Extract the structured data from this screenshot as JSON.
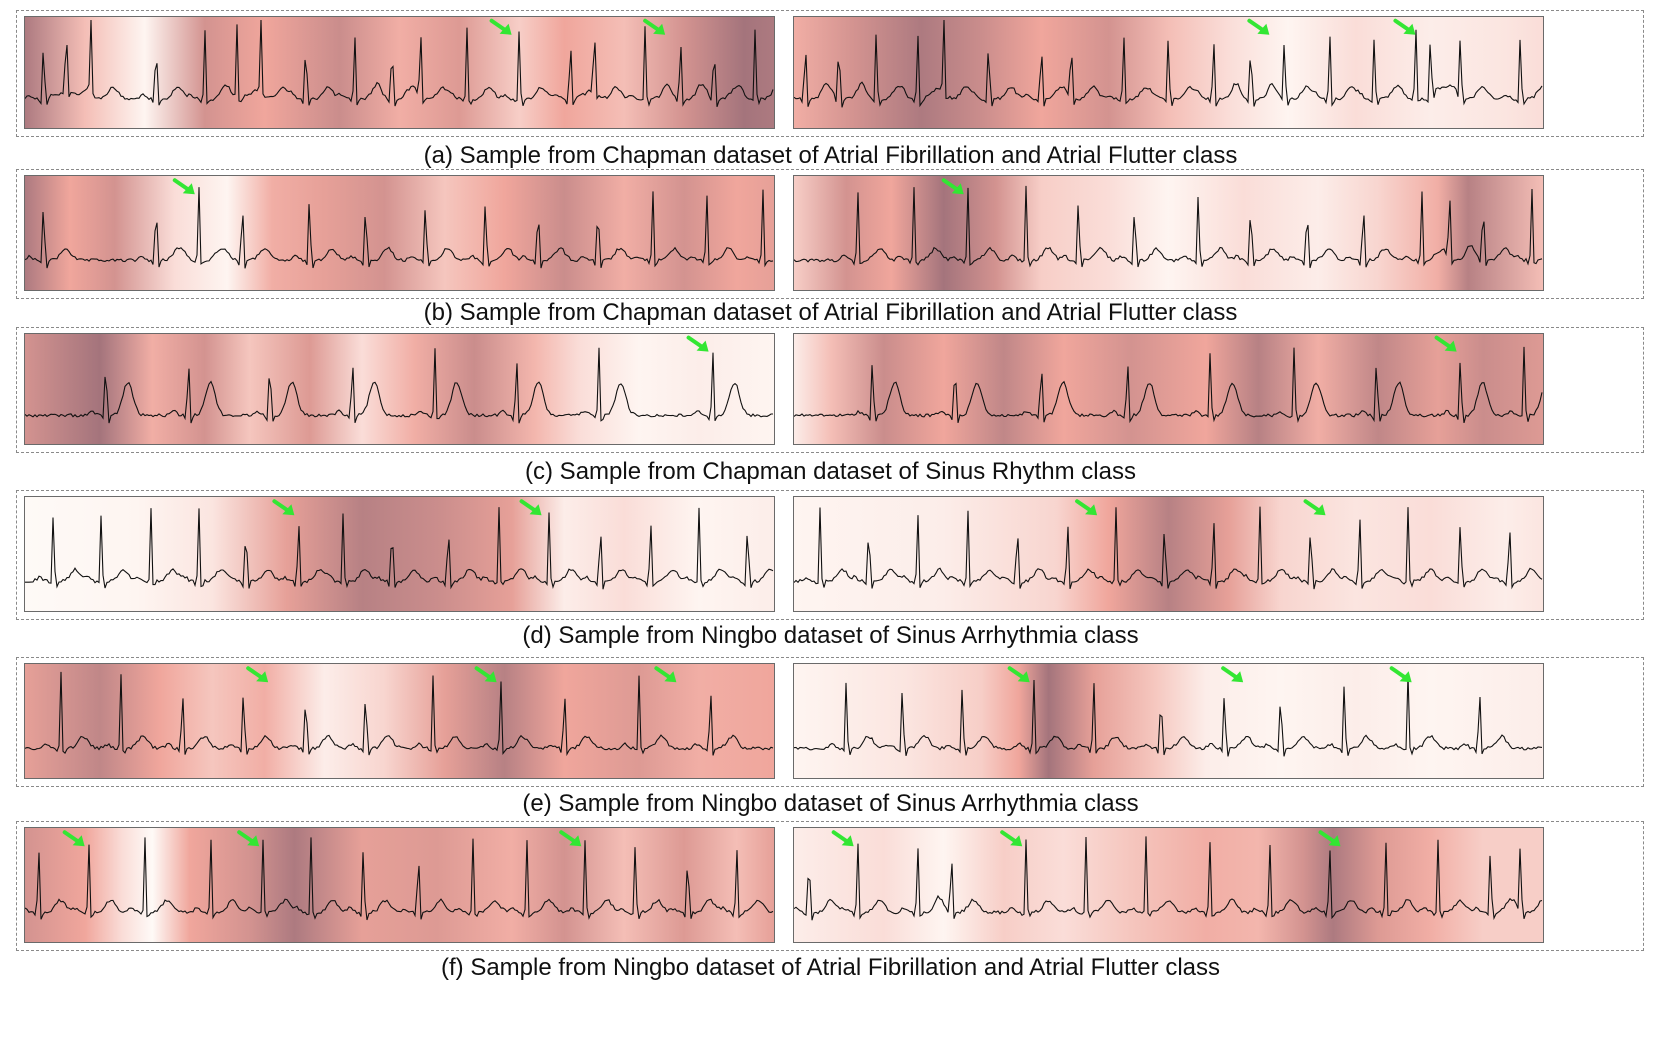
{
  "colors": {
    "arrow": "#33e633",
    "trace": "#111111",
    "heat_low": "#fffdfa",
    "heat_mid": "#f0a69c",
    "heat_high": "#9a6e78"
  },
  "rows": [
    {
      "caption": "(a) Sample from Chapman dataset of Atrial Fibrillation and Atrial Flutter class",
      "panels": [
        {
          "beats": [
            0.025,
            0.055,
            0.088,
            0.175,
            0.24,
            0.283,
            0.315,
            0.375,
            0.44,
            0.49,
            0.528,
            0.59,
            0.66,
            0.728,
            0.76,
            0.828,
            0.875,
            0.92,
            0.975
          ],
          "arrows": [
            0.655,
            0.86
          ],
          "heat": [
            [
              0,
              0.9
            ],
            [
              0.08,
              0.4
            ],
            [
              0.16,
              0.05
            ],
            [
              0.24,
              0.7
            ],
            [
              0.32,
              0.55
            ],
            [
              0.42,
              0.75
            ],
            [
              0.5,
              0.5
            ],
            [
              0.58,
              0.65
            ],
            [
              0.66,
              0.3
            ],
            [
              0.72,
              0.55
            ],
            [
              0.8,
              0.4
            ],
            [
              0.88,
              0.7
            ],
            [
              0.96,
              0.95
            ],
            [
              1,
              0.9
            ]
          ]
        },
        {
          "beats": [
            0.015,
            0.06,
            0.11,
            0.165,
            0.2,
            0.26,
            0.33,
            0.37,
            0.44,
            0.5,
            0.56,
            0.61,
            0.655,
            0.715,
            0.775,
            0.83,
            0.85,
            0.89,
            0.97
          ],
          "arrows": [
            0.64,
            0.835
          ],
          "heat": [
            [
              0,
              0.5
            ],
            [
              0.08,
              0.7
            ],
            [
              0.17,
              0.9
            ],
            [
              0.25,
              0.75
            ],
            [
              0.33,
              0.55
            ],
            [
              0.42,
              0.7
            ],
            [
              0.5,
              0.4
            ],
            [
              0.58,
              0.2
            ],
            [
              0.66,
              0.05
            ],
            [
              0.75,
              0.2
            ],
            [
              0.85,
              0.1
            ],
            [
              0.95,
              0.15
            ],
            [
              1,
              0.2
            ]
          ]
        }
      ]
    },
    {
      "caption": "(b) Sample from Chapman dataset of Atrial Fibrillation and Atrial Flutter class",
      "panels": [
        {
          "beats": [
            0.025,
            0.175,
            0.232,
            0.29,
            0.38,
            0.455,
            0.535,
            0.615,
            0.685,
            0.765,
            0.838,
            0.91,
            0.985
          ],
          "arrows": [
            0.232
          ],
          "heat": [
            [
              0,
              0.9
            ],
            [
              0.06,
              0.55
            ],
            [
              0.12,
              0.7
            ],
            [
              0.2,
              0.2
            ],
            [
              0.27,
              0.05
            ],
            [
              0.33,
              0.5
            ],
            [
              0.4,
              0.6
            ],
            [
              0.48,
              0.7
            ],
            [
              0.56,
              0.35
            ],
            [
              0.64,
              0.55
            ],
            [
              0.72,
              0.75
            ],
            [
              0.8,
              0.5
            ],
            [
              0.88,
              0.7
            ],
            [
              0.95,
              0.55
            ],
            [
              1,
              0.6
            ]
          ]
        },
        {
          "beats": [
            0.085,
            0.16,
            0.232,
            0.31,
            0.38,
            0.455,
            0.54,
            0.61,
            0.685,
            0.76,
            0.838,
            0.875,
            0.92,
            0.985
          ],
          "arrows": [
            0.232
          ],
          "heat": [
            [
              0,
              0.3
            ],
            [
              0.07,
              0.7
            ],
            [
              0.13,
              0.55
            ],
            [
              0.2,
              0.95
            ],
            [
              0.27,
              0.7
            ],
            [
              0.33,
              0.3
            ],
            [
              0.42,
              0.2
            ],
            [
              0.5,
              0.05
            ],
            [
              0.6,
              0.2
            ],
            [
              0.7,
              0.1
            ],
            [
              0.78,
              0.25
            ],
            [
              0.86,
              0.5
            ],
            [
              0.9,
              0.85
            ],
            [
              1,
              0.4
            ]
          ]
        }
      ]
    },
    {
      "caption": "(c) Sample from Chapman dataset of Sinus Rhythm class",
      "panels": [
        {
          "beats": [
            0.108,
            0.218,
            0.327,
            0.437,
            0.547,
            0.656,
            0.766,
            0.918
          ],
          "arrows": [
            0.918
          ],
          "heat": [
            [
              0,
              0.7
            ],
            [
              0.1,
              0.95
            ],
            [
              0.17,
              0.5
            ],
            [
              0.24,
              0.7
            ],
            [
              0.3,
              0.35
            ],
            [
              0.38,
              0.65
            ],
            [
              0.45,
              0.2
            ],
            [
              0.52,
              0.5
            ],
            [
              0.6,
              0.75
            ],
            [
              0.68,
              0.45
            ],
            [
              0.74,
              0.2
            ],
            [
              0.82,
              0.05
            ],
            [
              0.9,
              0.1
            ],
            [
              1,
              0.05
            ]
          ]
        },
        {
          "beats": [
            0.105,
            0.215,
            0.33,
            0.445,
            0.556,
            0.668,
            0.778,
            0.89,
            0.975
          ],
          "arrows": [
            0.89
          ],
          "heat": [
            [
              0,
              0.1
            ],
            [
              0.05,
              0.4
            ],
            [
              0.12,
              0.75
            ],
            [
              0.2,
              0.55
            ],
            [
              0.28,
              0.8
            ],
            [
              0.36,
              0.55
            ],
            [
              0.45,
              0.7
            ],
            [
              0.55,
              0.55
            ],
            [
              0.62,
              0.85
            ],
            [
              0.7,
              0.5
            ],
            [
              0.78,
              0.8
            ],
            [
              0.86,
              0.6
            ],
            [
              0.92,
              0.75
            ],
            [
              1,
              0.65
            ]
          ]
        }
      ]
    },
    {
      "caption": "(d) Sample from Ningbo dataset of Sinus Arrhythmia class",
      "panels": [
        {
          "beats": [
            0.038,
            0.102,
            0.168,
            0.232,
            0.295,
            0.365,
            0.425,
            0.49,
            0.565,
            0.633,
            0.7,
            0.768,
            0.835,
            0.9,
            0.965
          ],
          "arrows": [
            0.365,
            0.695
          ],
          "heat": [
            [
              0,
              0.02
            ],
            [
              0.15,
              0.05
            ],
            [
              0.25,
              0.15
            ],
            [
              0.35,
              0.6
            ],
            [
              0.45,
              0.85
            ],
            [
              0.55,
              0.75
            ],
            [
              0.65,
              0.6
            ],
            [
              0.72,
              0.1
            ],
            [
              0.8,
              0.2
            ],
            [
              0.9,
              0.05
            ],
            [
              1,
              0.1
            ]
          ]
        },
        {
          "beats": [
            0.035,
            0.1,
            0.165,
            0.232,
            0.298,
            0.365,
            0.43,
            0.495,
            0.56,
            0.622,
            0.69,
            0.755,
            0.82,
            0.89,
            0.955
          ],
          "arrows": [
            0.41,
            0.715
          ],
          "heat": [
            [
              0,
              0.05
            ],
            [
              0.2,
              0.1
            ],
            [
              0.35,
              0.25
            ],
            [
              0.42,
              0.55
            ],
            [
              0.5,
              0.85
            ],
            [
              0.58,
              0.6
            ],
            [
              0.65,
              0.25
            ],
            [
              0.75,
              0.15
            ],
            [
              0.85,
              0.2
            ],
            [
              0.95,
              0.1
            ],
            [
              1,
              0.15
            ]
          ]
        }
      ]
    },
    {
      "caption": "(e) Sample from Ningbo dataset of Sinus Arrhythmia class",
      "panels": [
        {
          "beats": [
            0.048,
            0.128,
            0.21,
            0.292,
            0.375,
            0.455,
            0.545,
            0.635,
            0.72,
            0.82,
            0.915
          ],
          "arrows": [
            0.33,
            0.635,
            0.875
          ],
          "heat": [
            [
              0,
              0.6
            ],
            [
              0.1,
              0.8
            ],
            [
              0.18,
              0.55
            ],
            [
              0.25,
              0.35
            ],
            [
              0.32,
              0.5
            ],
            [
              0.4,
              0.1
            ],
            [
              0.48,
              0.25
            ],
            [
              0.56,
              0.6
            ],
            [
              0.64,
              0.85
            ],
            [
              0.72,
              0.55
            ],
            [
              0.82,
              0.65
            ],
            [
              0.9,
              0.5
            ],
            [
              1,
              0.55
            ]
          ]
        },
        {
          "beats": [
            0.07,
            0.145,
            0.225,
            0.32,
            0.4,
            0.49,
            0.575,
            0.65,
            0.735,
            0.82,
            0.915
          ],
          "arrows": [
            0.32,
            0.605,
            0.83
          ],
          "heat": [
            [
              0,
              0.05
            ],
            [
              0.15,
              0.15
            ],
            [
              0.25,
              0.3
            ],
            [
              0.3,
              0.55
            ],
            [
              0.34,
              0.95
            ],
            [
              0.4,
              0.6
            ],
            [
              0.48,
              0.35
            ],
            [
              0.55,
              0.1
            ],
            [
              0.65,
              0.05
            ],
            [
              0.75,
              0.1
            ],
            [
              0.85,
              0.05
            ],
            [
              1,
              0.1
            ]
          ]
        }
      ]
    },
    {
      "caption": "(f) Sample from Ningbo dataset of Atrial Fibrillation and Atrial Flutter class",
      "panels": [
        {
          "beats": [
            0.018,
            0.085,
            0.16,
            0.248,
            0.318,
            0.382,
            0.452,
            0.525,
            0.598,
            0.67,
            0.748,
            0.815,
            0.885,
            0.95
          ],
          "arrows": [
            0.085,
            0.318,
            0.748
          ],
          "heat": [
            [
              0,
              0.7
            ],
            [
              0.08,
              0.55
            ],
            [
              0.13,
              0.2
            ],
            [
              0.17,
              0.02
            ],
            [
              0.22,
              0.55
            ],
            [
              0.3,
              0.7
            ],
            [
              0.36,
              0.9
            ],
            [
              0.45,
              0.6
            ],
            [
              0.55,
              0.65
            ],
            [
              0.65,
              0.5
            ],
            [
              0.72,
              0.7
            ],
            [
              0.8,
              0.4
            ],
            [
              0.88,
              0.65
            ],
            [
              0.95,
              0.4
            ],
            [
              1,
              0.6
            ]
          ]
        },
        {
          "beats": [
            0.02,
            0.085,
            0.165,
            0.21,
            0.31,
            0.39,
            0.47,
            0.555,
            0.635,
            0.715,
            0.79,
            0.86,
            0.93,
            0.97
          ],
          "arrows": [
            0.085,
            0.31,
            0.735
          ],
          "heat": [
            [
              0,
              0.1
            ],
            [
              0.12,
              0.2
            ],
            [
              0.2,
              0.05
            ],
            [
              0.28,
              0.3
            ],
            [
              0.36,
              0.2
            ],
            [
              0.45,
              0.35
            ],
            [
              0.55,
              0.5
            ],
            [
              0.62,
              0.45
            ],
            [
              0.68,
              0.7
            ],
            [
              0.72,
              0.9
            ],
            [
              0.78,
              0.65
            ],
            [
              0.85,
              0.5
            ],
            [
              0.92,
              0.3
            ],
            [
              1,
              0.3
            ]
          ]
        }
      ]
    }
  ]
}
